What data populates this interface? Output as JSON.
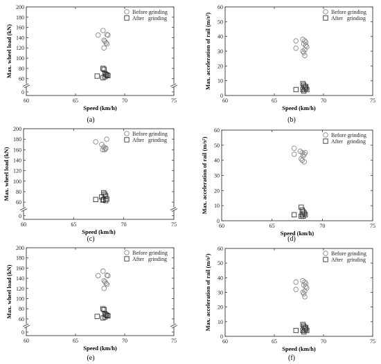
{
  "legend": {
    "before": "Before grinding",
    "after": "After   grinding"
  },
  "chart_data": [
    {
      "panel": "(a)",
      "type": "scatter",
      "xlabel": "Speed (km/h)",
      "ylabel": "Max. wheel load (kN)",
      "xlim": [
        60,
        75
      ],
      "xticks": [
        60,
        65,
        70,
        75
      ],
      "yticks_upper": [
        60,
        80,
        100,
        120,
        140,
        160,
        180,
        200
      ],
      "yticks_lower": [
        0
      ],
      "axis_break": true,
      "series": [
        {
          "name": "Before grinding",
          "marker": "circle",
          "x": [
            67.3,
            67.8,
            68.2,
            68.3,
            67.9,
            68.0,
            68.1,
            67.9,
            68.2
          ],
          "y": [
            145,
            154,
            146,
            145,
            135,
            133,
            130,
            120,
            128
          ]
        },
        {
          "name": "After   grinding",
          "marker": "square",
          "x": [
            67.2,
            67.8,
            67.9,
            68.0,
            68.1,
            68.2,
            68.3,
            67.8,
            68.0
          ],
          "y": [
            65,
            80,
            78,
            70,
            68,
            67,
            66,
            62,
            64
          ]
        }
      ]
    },
    {
      "panel": "(b)",
      "type": "scatter",
      "xlabel": "Speed (km/h)",
      "ylabel": "Max. acceleration of rail (m/s²)",
      "xlim": [
        60,
        75
      ],
      "ylim": [
        0,
        60
      ],
      "xticks": [
        60,
        65,
        70,
        75
      ],
      "yticks": [
        0,
        10,
        20,
        30,
        40,
        50,
        60
      ],
      "series": [
        {
          "name": "Before grinding",
          "marker": "circle",
          "x": [
            67.2,
            67.9,
            68.1,
            68.2,
            68.0,
            68.3,
            68.1,
            67.9,
            68.0,
            68.2,
            67.2,
            68.1
          ],
          "y": [
            37,
            38,
            37,
            36,
            35,
            33,
            31,
            30,
            29,
            34,
            32,
            27
          ]
        },
        {
          "name": "After   grinding",
          "marker": "square",
          "x": [
            67.2,
            67.9,
            68.0,
            68.1,
            68.2,
            68.3,
            68.1,
            68.0,
            67.9,
            68.2
          ],
          "y": [
            4,
            8,
            7,
            6,
            5,
            4,
            4,
            3,
            4,
            6
          ]
        }
      ]
    },
    {
      "panel": "(c)",
      "type": "scatter",
      "xlabel": "Speed (km/h)",
      "ylabel": "Max. wheel load (kN)",
      "xlim": [
        60,
        75
      ],
      "xticks": [
        60,
        65,
        70,
        75
      ],
      "yticks_upper": [
        60,
        80,
        100,
        120,
        140,
        160,
        180,
        200
      ],
      "yticks_lower": [
        0
      ],
      "axis_break": true,
      "series": [
        {
          "name": "Before grinding",
          "marker": "circle",
          "x": [
            67.2,
            67.8,
            68.1,
            68.2,
            68.3,
            67.9,
            68.0,
            68.2
          ],
          "y": [
            175,
            170,
            160,
            162,
            180,
            160,
            165,
            163
          ]
        },
        {
          "name": "After   grinding",
          "marker": "square",
          "x": [
            67.2,
            67.8,
            68.0,
            68.1,
            68.2,
            68.3,
            67.9,
            68.0,
            68.2
          ],
          "y": [
            65,
            70,
            78,
            75,
            72,
            66,
            64,
            65,
            63
          ]
        }
      ]
    },
    {
      "panel": "(d)",
      "type": "scatter",
      "xlabel": "Speed (km/h)",
      "ylabel": "Max. acceleration of rail (m/s²)",
      "xlim": [
        60,
        75
      ],
      "ylim": [
        0,
        60
      ],
      "xticks": [
        60,
        65,
        70,
        75
      ],
      "yticks": [
        0,
        10,
        20,
        30,
        40,
        50,
        60
      ],
      "series": [
        {
          "name": "Before grinding",
          "marker": "circle",
          "x": [
            67.2,
            67.8,
            68.0,
            68.2,
            68.3,
            68.1,
            67.9,
            68.2,
            68.0,
            67.2
          ],
          "y": [
            48,
            46,
            45,
            44,
            45,
            43,
            41,
            39,
            40,
            44
          ]
        },
        {
          "name": "After   grinding",
          "marker": "square",
          "x": [
            67.2,
            67.9,
            68.0,
            68.1,
            68.2,
            68.3,
            68.1,
            68.0,
            67.9
          ],
          "y": [
            4,
            9,
            7,
            6,
            5,
            4,
            3,
            4,
            3
          ]
        }
      ]
    },
    {
      "panel": "(e)",
      "type": "scatter",
      "xlabel": "Speed (km/h)",
      "ylabel": "Max. wheel load (kN)",
      "xlim": [
        60,
        75
      ],
      "xticks": [
        60,
        65,
        70,
        75
      ],
      "yticks_upper": [
        60,
        80,
        100,
        120,
        140,
        160,
        180,
        200
      ],
      "yticks_lower": [
        0
      ],
      "axis_break": true,
      "series": [
        {
          "name": "Before grinding",
          "marker": "circle",
          "x": [
            67.3,
            67.8,
            68.2,
            68.3,
            67.9,
            68.0,
            68.1,
            67.9,
            68.2
          ],
          "y": [
            145,
            154,
            146,
            145,
            135,
            133,
            130,
            120,
            128
          ]
        },
        {
          "name": "After   grinding",
          "marker": "square",
          "x": [
            67.2,
            67.8,
            67.9,
            68.0,
            68.1,
            68.2,
            68.3,
            67.8,
            68.0
          ],
          "y": [
            65,
            80,
            78,
            70,
            68,
            67,
            66,
            62,
            64
          ]
        }
      ]
    },
    {
      "panel": "(f)",
      "type": "scatter",
      "xlabel": "Speed (km/h)",
      "ylabel": "Max. acceleration of rail (m/s²)",
      "xlim": [
        60,
        75
      ],
      "ylim": [
        0,
        60
      ],
      "xticks": [
        60,
        65,
        70,
        75
      ],
      "yticks": [
        0,
        10,
        20,
        30,
        40,
        50,
        60
      ],
      "series": [
        {
          "name": "Before grinding",
          "marker": "circle",
          "x": [
            67.2,
            67.9,
            68.1,
            68.2,
            68.0,
            68.3,
            68.1,
            67.9,
            68.0,
            68.2,
            67.2,
            68.1
          ],
          "y": [
            37,
            38,
            37,
            36,
            35,
            33,
            31,
            30,
            29,
            34,
            32,
            27
          ]
        },
        {
          "name": "After   grinding",
          "marker": "square",
          "x": [
            67.2,
            67.9,
            68.0,
            68.1,
            68.2,
            68.3,
            68.1,
            68.0,
            67.9,
            68.2
          ],
          "y": [
            4,
            8,
            7,
            6,
            5,
            4,
            4,
            3,
            4,
            6
          ]
        }
      ]
    }
  ]
}
